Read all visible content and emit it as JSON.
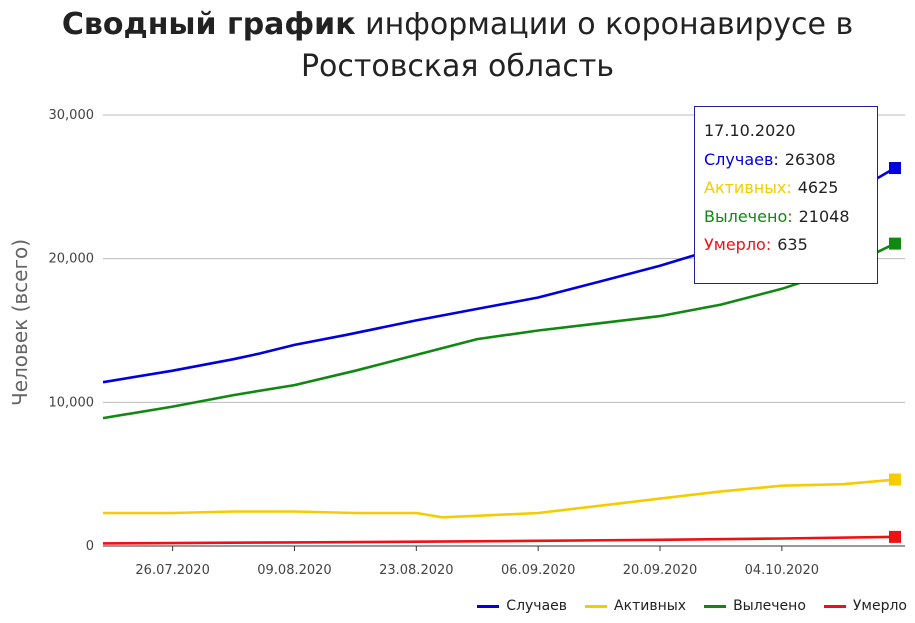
{
  "title": {
    "bold": "Сводный график",
    "rest_line1": " информации о коронавирусе в",
    "line2": "Ростовская область"
  },
  "chart_data": {
    "type": "line",
    "ylabel": "Человек (всего)",
    "ylim": [
      0,
      30000
    ],
    "yticks": [
      0,
      10000,
      20000,
      30000
    ],
    "ytick_labels": [
      "0",
      "10,000",
      "20,000",
      "30,000"
    ],
    "xlim": [
      "2020-07-18",
      "2020-10-17"
    ],
    "xtick_labels": [
      "26.07.2020",
      "09.08.2020",
      "23.08.2020",
      "06.09.2020",
      "20.09.2020",
      "04.10.2020"
    ],
    "xticks": [
      "2020-07-26",
      "2020-08-09",
      "2020-08-23",
      "2020-09-06",
      "2020-09-20",
      "2020-10-04"
    ],
    "grid": true,
    "legend_position": "bottom-right",
    "series": [
      {
        "name": "Случаев",
        "color": "#0000dd",
        "points": [
          [
            "2020-07-18",
            11400
          ],
          [
            "2020-07-26",
            12200
          ],
          [
            "2020-08-02",
            13000
          ],
          [
            "2020-08-05",
            13400
          ],
          [
            "2020-08-09",
            14000
          ],
          [
            "2020-08-15",
            14700
          ],
          [
            "2020-08-23",
            15700
          ],
          [
            "2020-08-30",
            16500
          ],
          [
            "2020-09-06",
            17300
          ],
          [
            "2020-09-13",
            18400
          ],
          [
            "2020-09-20",
            19500
          ],
          [
            "2020-09-27",
            20800
          ],
          [
            "2020-10-04",
            22300
          ],
          [
            "2020-10-11",
            24200
          ],
          [
            "2020-10-17",
            26308
          ]
        ]
      },
      {
        "name": "Активных",
        "color": "#f5cc00",
        "points": [
          [
            "2020-07-18",
            2300
          ],
          [
            "2020-07-26",
            2300
          ],
          [
            "2020-08-02",
            2400
          ],
          [
            "2020-08-09",
            2400
          ],
          [
            "2020-08-16",
            2300
          ],
          [
            "2020-08-23",
            2300
          ],
          [
            "2020-08-26",
            2000
          ],
          [
            "2020-08-30",
            2100
          ],
          [
            "2020-09-06",
            2300
          ],
          [
            "2020-09-13",
            2800
          ],
          [
            "2020-09-20",
            3300
          ],
          [
            "2020-09-27",
            3800
          ],
          [
            "2020-10-04",
            4200
          ],
          [
            "2020-10-11",
            4300
          ],
          [
            "2020-10-17",
            4625
          ]
        ]
      },
      {
        "name": "Вылечено",
        "color": "#118811",
        "points": [
          [
            "2020-07-18",
            8900
          ],
          [
            "2020-07-26",
            9700
          ],
          [
            "2020-08-02",
            10500
          ],
          [
            "2020-08-09",
            11200
          ],
          [
            "2020-08-16",
            12200
          ],
          [
            "2020-08-23",
            13300
          ],
          [
            "2020-08-30",
            14400
          ],
          [
            "2020-09-06",
            15000
          ],
          [
            "2020-09-13",
            15500
          ],
          [
            "2020-09-20",
            16000
          ],
          [
            "2020-09-27",
            16800
          ],
          [
            "2020-10-04",
            17900
          ],
          [
            "2020-10-11",
            19300
          ],
          [
            "2020-10-17",
            21048
          ]
        ]
      },
      {
        "name": "Умерло",
        "color": "#ee1111",
        "points": [
          [
            "2020-07-18",
            180
          ],
          [
            "2020-08-09",
            250
          ],
          [
            "2020-08-23",
            300
          ],
          [
            "2020-09-06",
            360
          ],
          [
            "2020-09-20",
            430
          ],
          [
            "2020-10-04",
            520
          ],
          [
            "2020-10-17",
            635
          ]
        ]
      }
    ]
  },
  "tooltip": {
    "date": "17.10.2020",
    "rows": [
      {
        "label": "Случаев:",
        "value": "26308",
        "color": "#0000dd"
      },
      {
        "label": "Активных:",
        "value": "4625",
        "color": "#f5cc00"
      },
      {
        "label": "Вылечено:",
        "value": "21048",
        "color": "#118811"
      },
      {
        "label": "Умерло:",
        "value": "635",
        "color": "#ee1111"
      }
    ]
  }
}
